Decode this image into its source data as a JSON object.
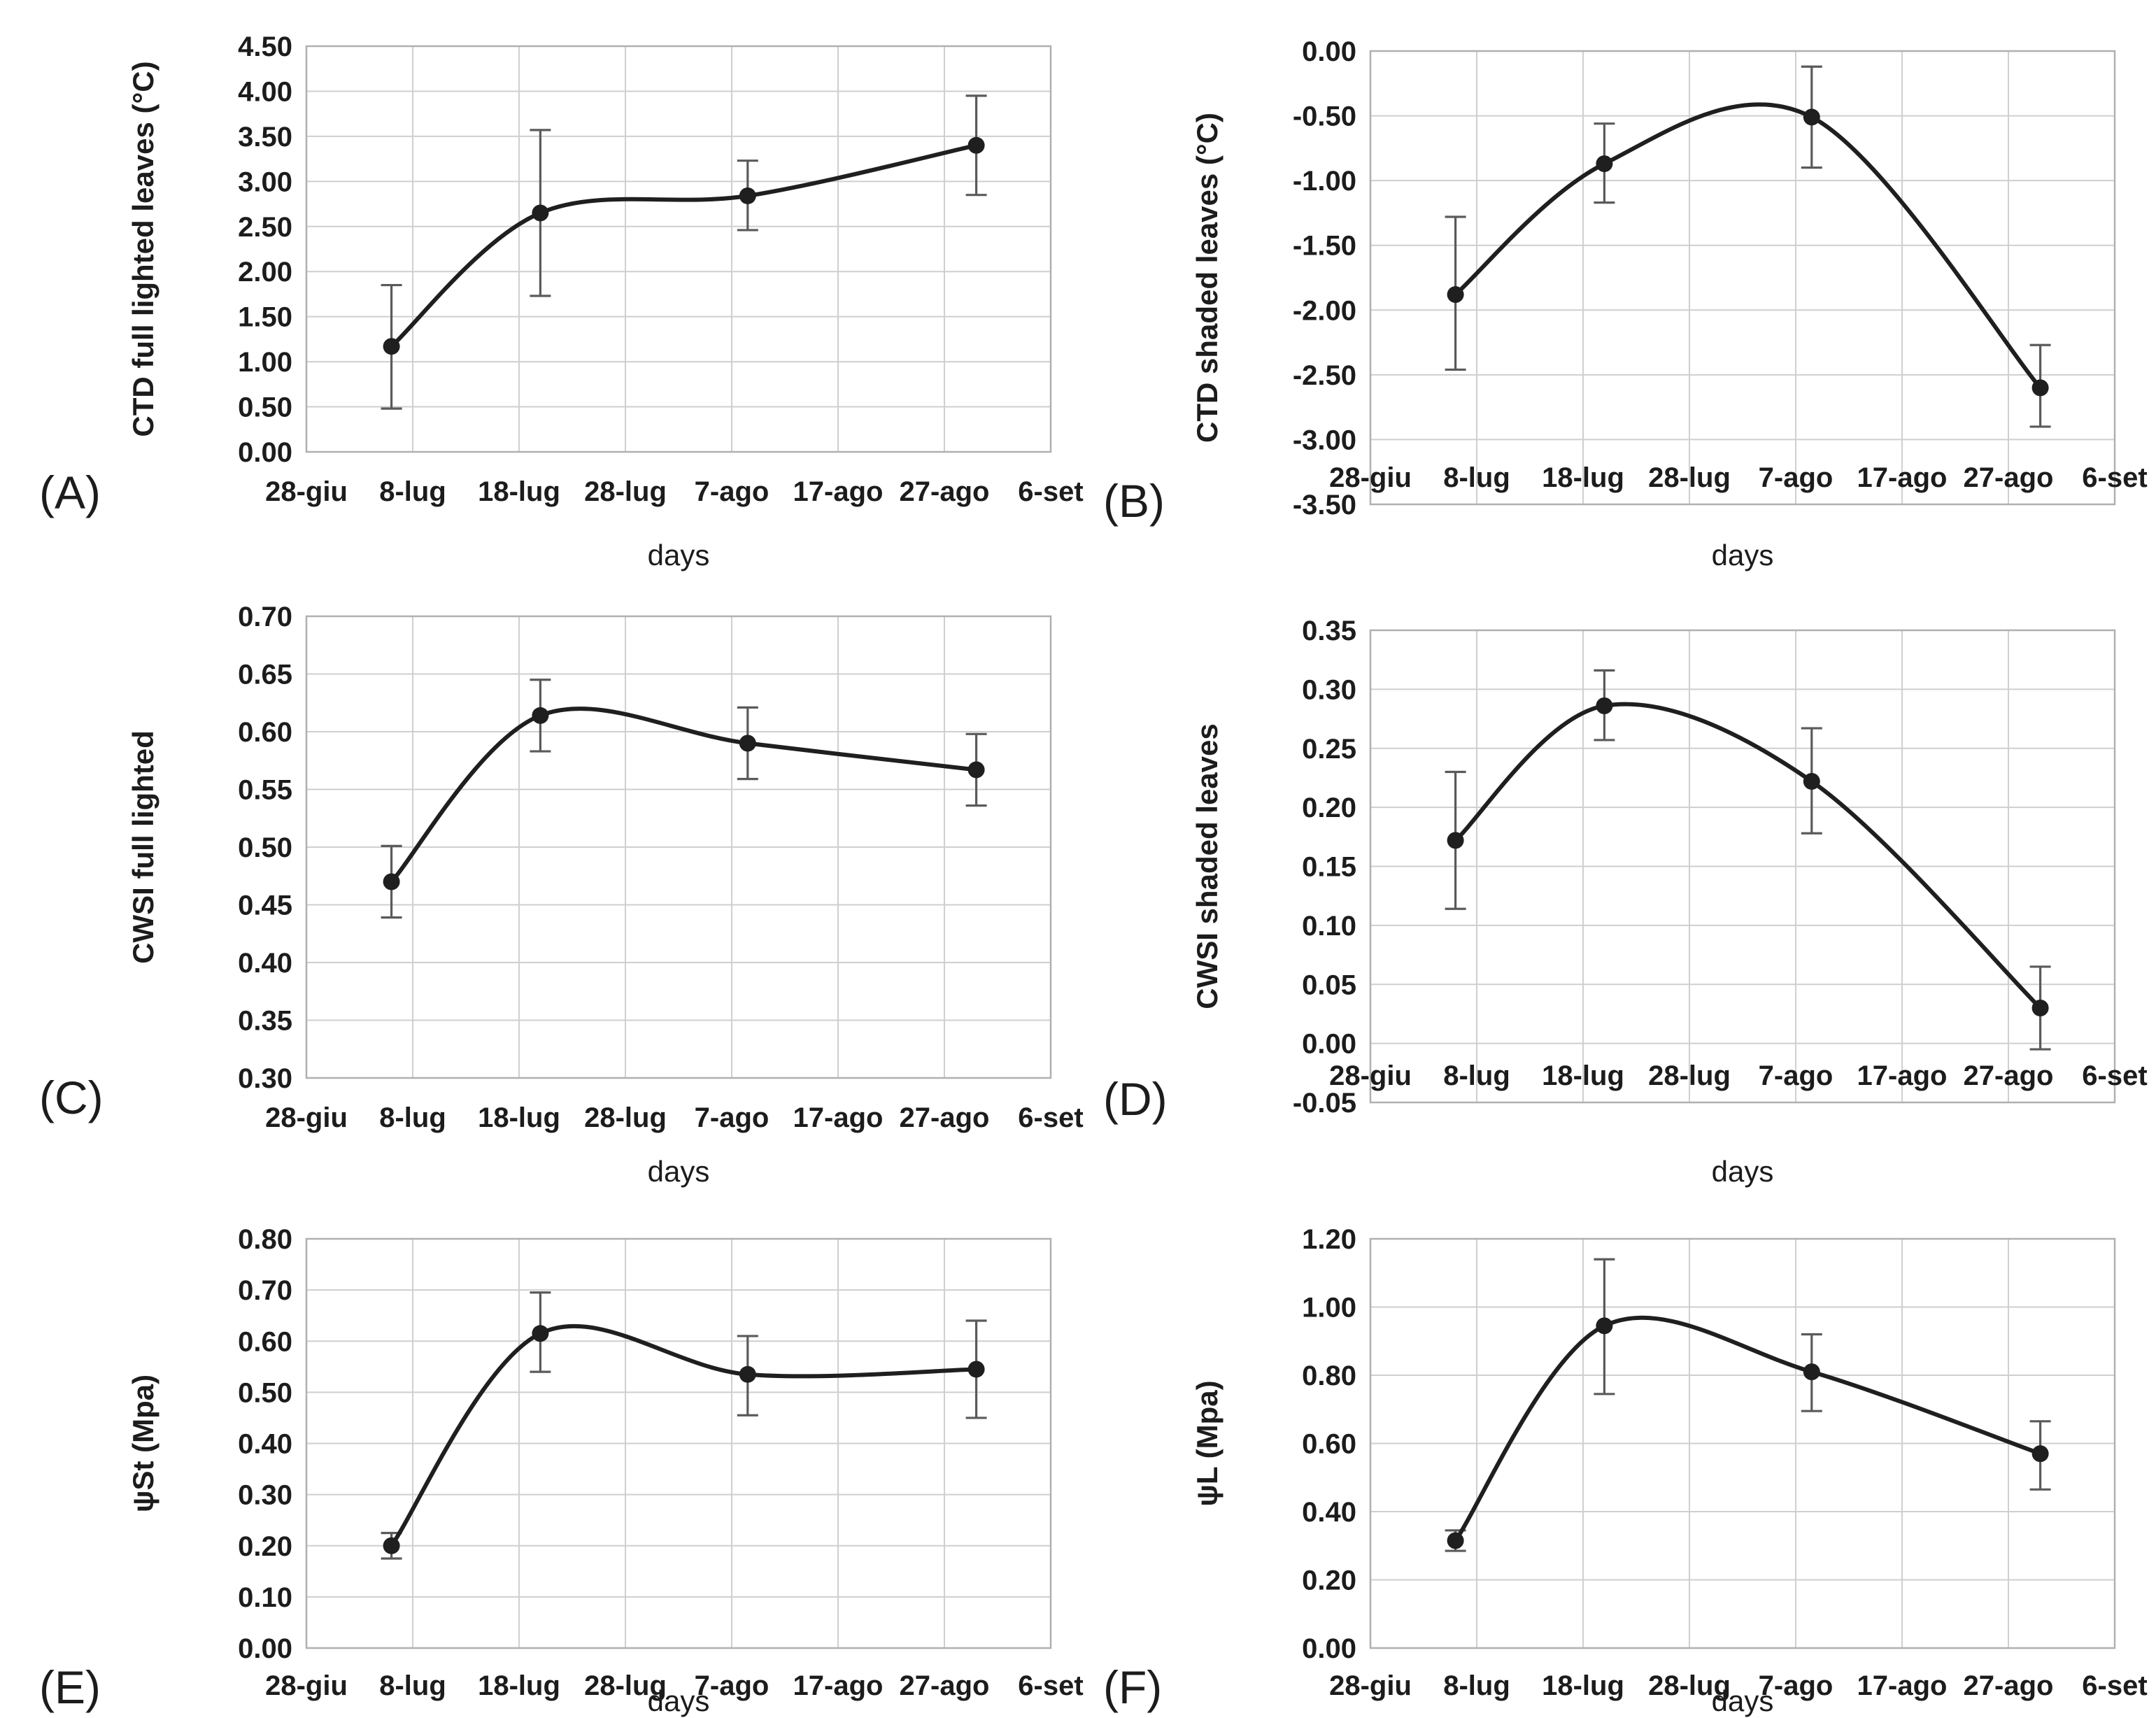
{
  "styles": {
    "background": "#ffffff",
    "text_color": "#1c1c1c",
    "line_color": "#1f1f1f",
    "marker_color": "#1f1f1f",
    "error_bar_color": "#5a5a5a",
    "gridline_color": "#cfcfcf",
    "plot_border_color": "#b0b0b0"
  },
  "x_categories": [
    "28-giu",
    "8-lug",
    "18-lug",
    "28-lug",
    "7-ago",
    "17-ago",
    "27-ago",
    "6-set"
  ],
  "chart_data": [
    {
      "type": "line",
      "panel_label": "(A)",
      "ylabel": "CTD full lighted leaves (°C)",
      "xlabel": "days",
      "categories": [
        "28-giu",
        "8-lug",
        "18-lug",
        "28-lug",
        "7-ago",
        "17-ago",
        "27-ago",
        "6-set"
      ],
      "ylim": [
        0,
        4.5
      ],
      "y_ticks": [
        "4.50",
        "4.00",
        "3.50",
        "3.00",
        "2.50",
        "2.00",
        "1.50",
        "1.00",
        "0.50",
        "0.00"
      ],
      "grid": true,
      "legend": "none",
      "x_tick_labels_position": "below",
      "points": [
        {
          "x_index": 0.8,
          "y": 1.17,
          "err_low": 0.48,
          "err_high": 1.85
        },
        {
          "x_index": 2.2,
          "y": 2.65,
          "err_low": 1.73,
          "err_high": 3.57
        },
        {
          "x_index": 4.15,
          "y": 2.84,
          "err_low": 2.46,
          "err_high": 3.23
        },
        {
          "x_index": 6.3,
          "y": 3.4,
          "err_low": 2.85,
          "err_high": 3.95
        }
      ]
    },
    {
      "type": "line",
      "panel_label": "(B)",
      "ylabel": "CTD shaded leaves (°C)",
      "xlabel": "days",
      "categories": [
        "28-giu",
        "8-lug",
        "18-lug",
        "28-lug",
        "7-ago",
        "17-ago",
        "27-ago",
        "6-set"
      ],
      "ylim": [
        -3.5,
        0
      ],
      "y_ticks": [
        "0.00",
        "-0.50",
        "-1.00",
        "-1.50",
        "-2.00",
        "-2.50",
        "-3.00",
        "-3.50"
      ],
      "grid": true,
      "legend": "none",
      "x_tick_labels_position": "inside",
      "points": [
        {
          "x_index": 0.8,
          "y": -1.88,
          "err_low": -2.46,
          "err_high": -1.28
        },
        {
          "x_index": 2.2,
          "y": -0.87,
          "err_low": -1.17,
          "err_high": -0.56
        },
        {
          "x_index": 4.15,
          "y": -0.51,
          "err_low": -0.9,
          "err_high": -0.12
        },
        {
          "x_index": 6.3,
          "y": -2.6,
          "err_low": -2.9,
          "err_high": -2.27
        }
      ]
    },
    {
      "type": "line",
      "panel_label": "(C)",
      "ylabel": "CWSI full lighted",
      "xlabel": "days",
      "categories": [
        "28-giu",
        "8-lug",
        "18-lug",
        "28-lug",
        "7-ago",
        "17-ago",
        "27-ago",
        "6-set"
      ],
      "ylim": [
        0.3,
        0.7
      ],
      "y_ticks": [
        "0.70",
        "0.65",
        "0.60",
        "0.55",
        "0.50",
        "0.45",
        "0.40",
        "0.35",
        "0.30"
      ],
      "grid": true,
      "legend": "none",
      "x_tick_labels_position": "below",
      "points": [
        {
          "x_index": 0.8,
          "y": 0.47,
          "err_low": 0.439,
          "err_high": 0.501
        },
        {
          "x_index": 2.2,
          "y": 0.614,
          "err_low": 0.583,
          "err_high": 0.645
        },
        {
          "x_index": 4.15,
          "y": 0.59,
          "err_low": 0.559,
          "err_high": 0.621
        },
        {
          "x_index": 6.3,
          "y": 0.567,
          "err_low": 0.536,
          "err_high": 0.598
        }
      ]
    },
    {
      "type": "line",
      "panel_label": "(D)",
      "ylabel": "CWSI shaded leaves",
      "xlabel": "days",
      "categories": [
        "28-giu",
        "8-lug",
        "18-lug",
        "28-lug",
        "7-ago",
        "17-ago",
        "27-ago",
        "6-set"
      ],
      "ylim": [
        -0.05,
        0.35
      ],
      "y_ticks": [
        "0.35",
        "0.30",
        "0.25",
        "0.20",
        "0.15",
        "0.10",
        "0.05",
        "0.00",
        "-0.05"
      ],
      "grid": true,
      "legend": "none",
      "x_tick_labels_position": "inside",
      "points": [
        {
          "x_index": 0.8,
          "y": 0.172,
          "err_low": 0.114,
          "err_high": 0.23
        },
        {
          "x_index": 2.2,
          "y": 0.286,
          "err_low": 0.257,
          "err_high": 0.316
        },
        {
          "x_index": 4.15,
          "y": 0.222,
          "err_low": 0.178,
          "err_high": 0.267
        },
        {
          "x_index": 6.3,
          "y": 0.03,
          "err_low": -0.005,
          "err_high": 0.065
        }
      ]
    },
    {
      "type": "line",
      "panel_label": "(E)",
      "ylabel": "ψSt (Mpa)",
      "xlabel": "days",
      "categories": [
        "28-giu",
        "8-lug",
        "18-lug",
        "28-lug",
        "7-ago",
        "17-ago",
        "27-ago",
        "6-set"
      ],
      "ylim": [
        0,
        0.8
      ],
      "y_ticks": [
        "0.80",
        "0.70",
        "0.60",
        "0.50",
        "0.40",
        "0.30",
        "0.20",
        "0.10",
        "0.00"
      ],
      "grid": true,
      "legend": "none",
      "x_tick_labels_position": "below",
      "points": [
        {
          "x_index": 0.8,
          "y": 0.2,
          "err_low": 0.175,
          "err_high": 0.225
        },
        {
          "x_index": 2.2,
          "y": 0.615,
          "err_low": 0.54,
          "err_high": 0.695
        },
        {
          "x_index": 4.15,
          "y": 0.535,
          "err_low": 0.455,
          "err_high": 0.61
        },
        {
          "x_index": 6.3,
          "y": 0.545,
          "err_low": 0.45,
          "err_high": 0.64
        }
      ]
    },
    {
      "type": "line",
      "panel_label": "(F)",
      "ylabel": "ψL (Mpa)",
      "xlabel": "days",
      "categories": [
        "28-giu",
        "8-lug",
        "18-lug",
        "28-lug",
        "7-ago",
        "17-ago",
        "27-ago",
        "6-set"
      ],
      "ylim": [
        0,
        1.2
      ],
      "y_ticks": [
        "1.20",
        "1.00",
        "0.80",
        "0.60",
        "0.40",
        "0.20",
        "0.00"
      ],
      "grid": true,
      "legend": "none",
      "x_tick_labels_position": "below",
      "points": [
        {
          "x_index": 0.8,
          "y": 0.315,
          "err_low": 0.285,
          "err_high": 0.345
        },
        {
          "x_index": 2.2,
          "y": 0.945,
          "err_low": 0.745,
          "err_high": 1.14
        },
        {
          "x_index": 4.15,
          "y": 0.81,
          "err_low": 0.695,
          "err_high": 0.92
        },
        {
          "x_index": 6.3,
          "y": 0.57,
          "err_low": 0.465,
          "err_high": 0.665
        }
      ]
    }
  ]
}
